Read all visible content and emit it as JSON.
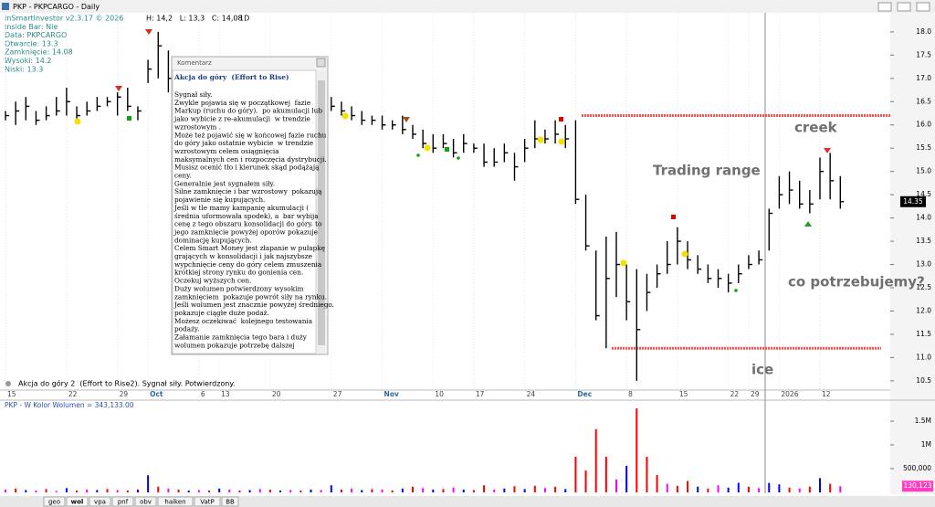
{
  "header": {
    "title": "PKP - PKPCARGO - Daily",
    "readout": "H: 14,2   L: 13,3   C: 14,08",
    "interval": "1D"
  },
  "info": [
    "InSmartInvestor v2.3.17 © 2026",
    "Inside Bar: Nie",
    "Data: PKPCARGO",
    "Otwarcie: 13.3",
    "Zamknięcie: 14.08",
    "Wysoki: 14.2",
    "Niski: 13.3"
  ],
  "comment": {
    "title": "Komentarz",
    "heading": "Akcja do góry  (Effort to Rise)",
    "lines": [
      "Sygnał siły.",
      "Zwykle pojawia się w początkowej  fazie",
      "Markup (ruchu do góry),  po akumulacji lub",
      "jako wybicie z re-akumulacji  w trendzie",
      "wzrostowym .",
      "Może też pojawić się w końcowej fazie ruchu",
      "do góry jako ostatnie wybicie  w trendzie",
      "wzrostowym celem osiągnięcia",
      "maksymalnych cen i rozpoczęcia dystrybucji.",
      "Musisz ocenić tło i kierunek skąd podążają",
      "ceny.",
      "Generalnie jest sygnałem siły.",
      "Silne zamknięcie i bar wzrostowy  pokazują",
      "pojawienie się kupujących.",
      "Jeśli w tle mamy kampanię akumulacji (",
      "średnia uformowała spodek), a  bar wybija",
      "cenę z tego obszaru konsolidacji do góry. to",
      "jego zamknięcie powyżej oporów pokazuje",
      "dominację kupujących.",
      "Celem Smart Money jest złapanie w pułapkę",
      "grających w konsolidacji i jak najszybsze",
      "wypchnięcie ceny do góry celem zmuszenia",
      "krótkiej strony rynku do gonienia cen.",
      "Oczekuj wyższych cen.",
      "Duży wolumen potwierdzony wysokim",
      "zamknięciem  pokazuje powrót siły na rynku.",
      "Jeśli wolumen jest znacznie powyżej średniego.",
      "pokazuje ciągłe duże podaż.",
      "Możesz oczekiwać  kolejnego testowania",
      "podaży.",
      "Załamanie zamknięcia tego bara i duży",
      "wolumen pokazuje potrzebę dalszej"
    ]
  },
  "status": "Akcja do góry 2  (Effort to Rise2). Sygnał siły. Potwierdzony.",
  "tabs": [
    "geo",
    "wol",
    "vpa",
    "pnf",
    "obv",
    "haiken",
    "VatP",
    "BB"
  ],
  "chart_data": [
    {
      "type": "hlc",
      "color": "#000000",
      "categories": [
        "15",
        null,
        null,
        null,
        null,
        null,
        "22",
        null,
        null,
        null,
        null,
        "29",
        null,
        null,
        "Oct",
        null,
        null,
        null,
        null,
        "6",
        null,
        "13",
        null,
        null,
        null,
        null,
        "20",
        null,
        null,
        null,
        null,
        null,
        "27",
        null,
        null,
        null,
        null,
        "Nov",
        null,
        null,
        null,
        null,
        "10",
        null,
        null,
        null,
        "17",
        null,
        null,
        null,
        null,
        "24",
        null,
        null,
        null,
        null,
        "Dec",
        null,
        null,
        null,
        null,
        "8",
        null,
        null,
        null,
        null,
        "15",
        null,
        null,
        null,
        null,
        "22",
        null,
        "29",
        null,
        null,
        "2026",
        null,
        null,
        null,
        "12",
        null,
        null
      ],
      "high": [
        16.3,
        16.5,
        16.6,
        16.3,
        16.4,
        16.6,
        16.8,
        16.4,
        16.5,
        16.6,
        16.6,
        16.7,
        16.8,
        16.4,
        17.4,
        18.0,
        17.6,
        null,
        null,
        null,
        null,
        null,
        null,
        null,
        null,
        null,
        null,
        null,
        null,
        null,
        null,
        null,
        16.6,
        16.5,
        16.4,
        16.3,
        16.2,
        16.2,
        16.1,
        16.2,
        16.0,
        15.9,
        15.8,
        15.8,
        15.7,
        15.8,
        15.6,
        15.6,
        15.5,
        15.6,
        15.4,
        15.7,
        16.1,
        15.9,
        16.1,
        16.0,
        16.1,
        14.5,
        13.3,
        13.6,
        13.7,
        13.0,
        12.9,
        12.8,
        13.0,
        13.5,
        13.8,
        13.5,
        13.2,
        13.0,
        12.9,
        12.8,
        13.0,
        13.2,
        13.3,
        14.2,
        14.9,
        15.0,
        14.8,
        14.6,
        15.3,
        15.4,
        14.9
      ],
      "low": [
        16.1,
        16.0,
        16.1,
        16.0,
        16.1,
        16.2,
        16.2,
        16.1,
        16.2,
        16.3,
        16.4,
        16.2,
        16.3,
        16.1,
        16.9,
        17.0,
        16.7,
        null,
        null,
        null,
        null,
        null,
        null,
        null,
        null,
        null,
        null,
        null,
        null,
        null,
        null,
        null,
        16.3,
        16.2,
        16.1,
        16.0,
        16.0,
        15.9,
        15.9,
        15.8,
        15.7,
        15.5,
        15.4,
        15.5,
        15.3,
        15.4,
        15.4,
        15.1,
        15.1,
        15.2,
        14.8,
        15.2,
        15.5,
        15.6,
        15.6,
        15.5,
        14.3,
        13.3,
        11.8,
        11.2,
        12.3,
        11.8,
        10.5,
        12.0,
        12.5,
        12.8,
        13.0,
        12.9,
        12.8,
        12.6,
        12.5,
        12.4,
        12.6,
        12.9,
        13.0,
        13.3,
        14.2,
        14.3,
        14.2,
        14.1,
        14.4,
        14.4,
        14.2
      ],
      "close": [
        16.2,
        16.3,
        16.4,
        16.1,
        16.2,
        16.3,
        16.5,
        16.2,
        16.3,
        16.4,
        16.5,
        16.6,
        16.4,
        16.3,
        17.2,
        17.7,
        17.0,
        null,
        null,
        null,
        null,
        null,
        null,
        null,
        null,
        null,
        null,
        null,
        null,
        null,
        null,
        null,
        16.4,
        16.3,
        16.2,
        16.1,
        16.1,
        16.0,
        16.0,
        15.9,
        15.8,
        15.6,
        15.5,
        15.6,
        15.4,
        15.6,
        15.5,
        15.2,
        15.2,
        15.4,
        15.1,
        15.5,
        15.7,
        15.7,
        15.8,
        15.7,
        14.4,
        13.4,
        11.9,
        12.7,
        13.0,
        12.2,
        11.6,
        12.4,
        12.8,
        13.0,
        13.5,
        13.1,
        12.9,
        12.7,
        12.7,
        12.6,
        12.8,
        13.0,
        13.1,
        14.1,
        14.5,
        14.6,
        14.3,
        14.3,
        15.0,
        14.8,
        14.35
      ],
      "ylim": [
        10.34,
        18.41
      ],
      "yticks": [
        10.5,
        {
          "value": 11.0,
          "label": "11.0"
        },
        11.5,
        {
          "value": 12.0,
          "label": "12.0"
        },
        12.5,
        {
          "value": 13.0,
          "label": "13.0"
        },
        13.5,
        {
          "value": 14.0,
          "label": "14.0"
        },
        14.5,
        {
          "value": 15.0,
          "label": "15.0"
        },
        15.5,
        {
          "value": 16.0,
          "label": "16.0"
        },
        16.5,
        {
          "value": 17.0,
          "label": "17.0"
        },
        17.5,
        {
          "value": 18.0,
          "label": "18.0"
        }
      ],
      "levels": [
        16.2,
        11.2
      ],
      "level_color": "#ff5050",
      "annotations": [
        "Trading range",
        "creek",
        "co potrzebujemy?",
        "ice"
      ],
      "last_value": 14.35
    },
    {
      "type": "bar",
      "title": "PKP - W Kolor Wolumen = 343,133.00",
      "values": [
        60000,
        80000,
        50000,
        40000,
        70000,
        30000,
        90000,
        40000,
        60000,
        50000,
        70000,
        50000,
        40000,
        60000,
        360000,
        120000,
        80000,
        60000,
        40000,
        50000,
        40000,
        80000,
        60000,
        40000,
        50000,
        70000,
        60000,
        40000,
        50000,
        40000,
        60000,
        50000,
        150000,
        60000,
        80000,
        50000,
        70000,
        60000,
        40000,
        80000,
        120000,
        90000,
        60000,
        70000,
        100000,
        60000,
        50000,
        150000,
        60000,
        80000,
        130000,
        70000,
        140000,
        90000,
        120000,
        70000,
        750000,
        460000,
        1330000,
        750000,
        270000,
        560000,
        1770000,
        750000,
        365000,
        180000,
        140000,
        240000,
        120000,
        80000,
        150000,
        100000,
        200000,
        120000,
        90000,
        200000,
        170000,
        100000,
        80000,
        120000,
        300000,
        180000,
        130000
      ],
      "colors": [
        "magenta",
        "red",
        "blue",
        "magenta",
        "red",
        "magenta",
        "blue",
        "red",
        "magenta",
        "blue",
        "red",
        "magenta",
        "red",
        "blue",
        "blue",
        "red",
        "magenta",
        "red",
        "blue",
        "magenta",
        "red",
        "blue",
        "magenta",
        "red",
        "blue",
        "magenta",
        "red",
        "blue",
        "magenta",
        "red",
        "blue",
        "magenta",
        "blue",
        "red",
        "magenta",
        "blue",
        "red",
        "magenta",
        "red",
        "blue",
        "red",
        "magenta",
        "blue",
        "red",
        "magenta",
        "blue",
        "red",
        "red",
        "magenta",
        "blue",
        "red",
        "blue",
        "red",
        "magenta",
        "red",
        "blue",
        "red",
        "red",
        "red",
        "red",
        "magenta",
        "blue",
        "red",
        "red",
        "red",
        "magenta",
        "red",
        "red",
        "blue",
        "red",
        "magenta",
        "blue",
        "blue",
        "red",
        "magenta",
        "blue",
        "blue",
        "red",
        "magenta",
        "red",
        "blue",
        "red",
        "magenta"
      ],
      "ylim": [
        0,
        1904000
      ],
      "yticks": [
        {
          "value": 500000,
          "label": "500,000"
        },
        {
          "value": 1000000,
          "label": "1M"
        },
        {
          "value": 1500000,
          "label": "1.5M"
        }
      ],
      "last_value": 130123,
      "last_value_label": "130,123"
    }
  ]
}
